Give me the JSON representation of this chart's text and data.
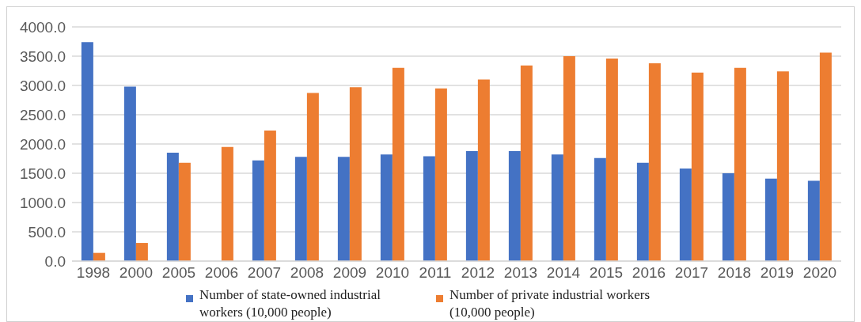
{
  "chart_data": {
    "type": "bar",
    "categories": [
      "1998",
      "2000",
      "2005",
      "2006",
      "2007",
      "2008",
      "2009",
      "2010",
      "2011",
      "2012",
      "2013",
      "2014",
      "2015",
      "2016",
      "2017",
      "2018",
      "2019",
      "2020"
    ],
    "series": [
      {
        "name": "Number of state-owned industrial workers (10,000 people)",
        "color": "#4472c4",
        "values": [
          3740,
          2980,
          1850,
          null,
          1720,
          1780,
          1780,
          1820,
          1790,
          1880,
          1880,
          1820,
          1760,
          1680,
          1580,
          1500,
          1410,
          1370
        ]
      },
      {
        "name": "Number of private industrial workers (10,000 people)",
        "color": "#ed7d31",
        "values": [
          140,
          310,
          1680,
          1950,
          2230,
          2870,
          2970,
          3300,
          2950,
          3100,
          3340,
          3500,
          3460,
          3380,
          3220,
          3300,
          3240,
          3560
        ]
      }
    ],
    "ylim": [
      0,
      4000
    ],
    "yticks": [
      {
        "value": 0,
        "label": "0.0"
      },
      {
        "value": 500,
        "label": "500.0"
      },
      {
        "value": 1000,
        "label": "1000.0"
      },
      {
        "value": 1500,
        "label": "1500.0"
      },
      {
        "value": 2000,
        "label": "2000.0"
      },
      {
        "value": 2500,
        "label": "2500.0"
      },
      {
        "value": 3000,
        "label": "3000.0"
      },
      {
        "value": 3500,
        "label": "3500.0"
      },
      {
        "value": 4000,
        "label": "4000.0"
      }
    ],
    "grid": "y",
    "legend": "bottom"
  }
}
